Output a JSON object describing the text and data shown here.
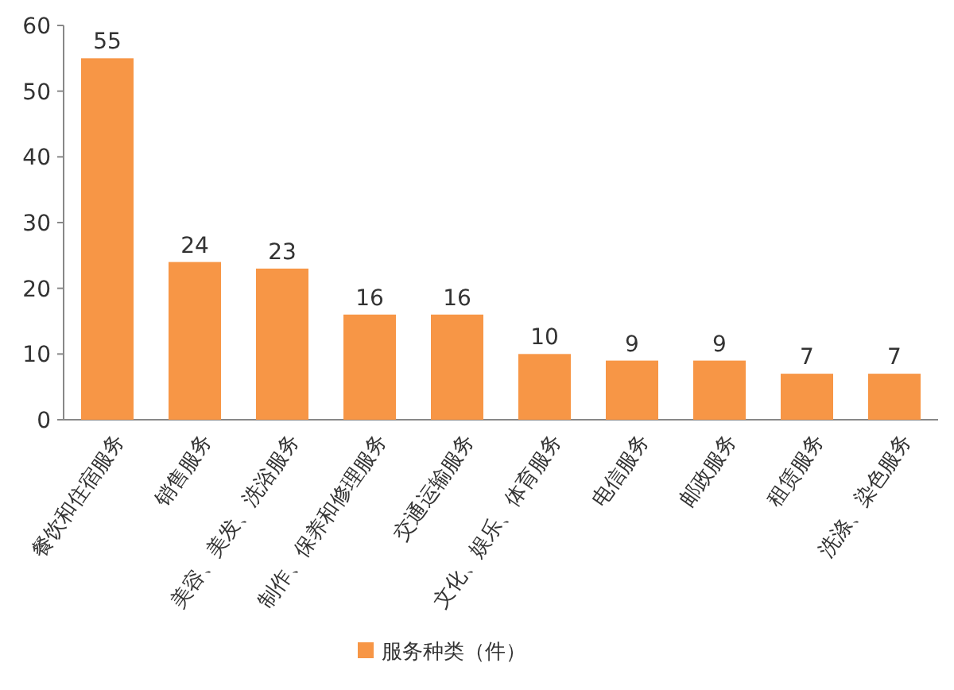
{
  "chart_data": {
    "type": "bar",
    "categories": [
      "餐饮和住宿服务",
      "销售服务",
      "美容、美发、洗浴服务",
      "制作、保养和修理服务",
      "交通运输服务",
      "文化、娱乐、体育服务",
      "电信服务",
      "邮政服务",
      "租赁服务",
      "洗涤、染色服务"
    ],
    "series": [
      {
        "name": "服务种类（件）",
        "color": "#f79646",
        "values": [
          55,
          24,
          23,
          16,
          16,
          10,
          9,
          9,
          7,
          7
        ]
      }
    ],
    "ylim": [
      0,
      60
    ],
    "yticks": [
      0,
      10,
      20,
      30,
      40,
      50,
      60
    ],
    "data_labels": true,
    "grid": false,
    "legend": "bottom left"
  }
}
